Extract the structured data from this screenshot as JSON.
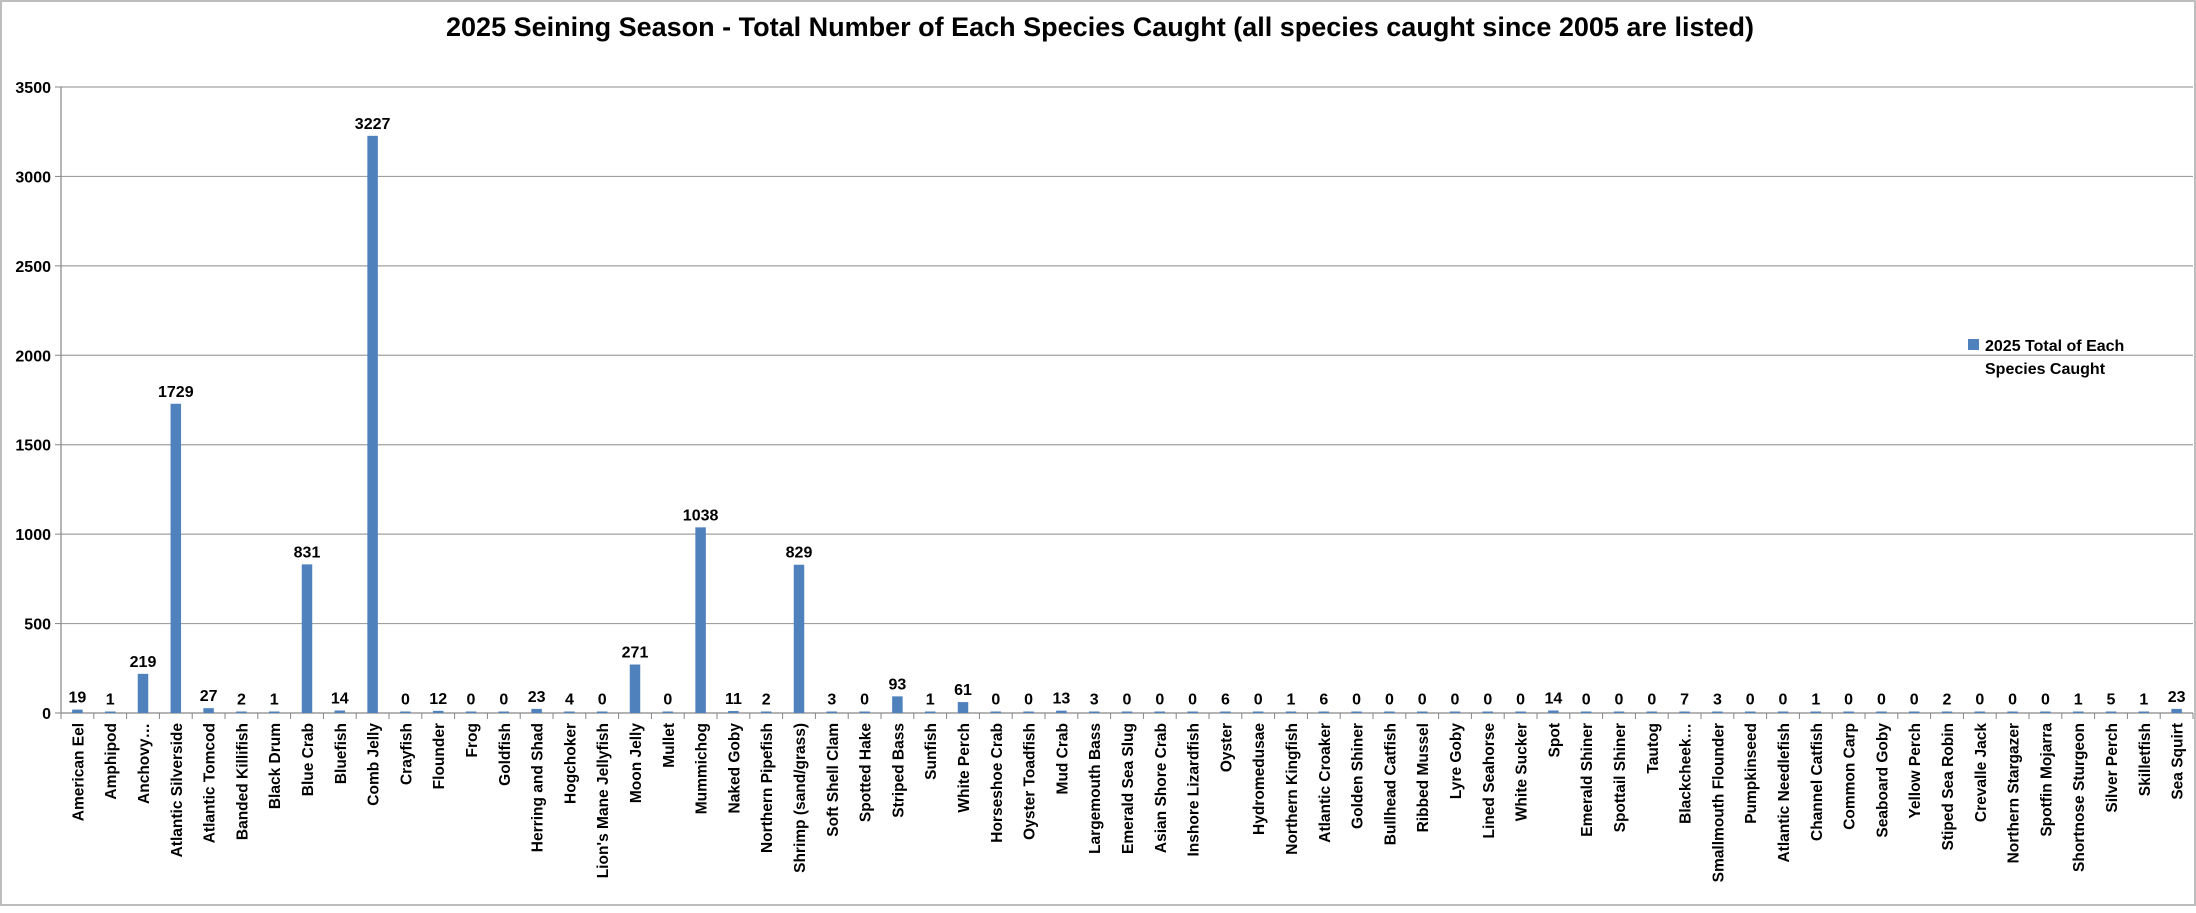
{
  "chart_data": {
    "type": "bar",
    "title": "2025 Seining Season - Total Number of Each Species Caught (all species caught since 2005 are listed)",
    "xlabel": "",
    "ylabel": "",
    "ylim": [
      0,
      3500
    ],
    "yticks": [
      0,
      500,
      1000,
      1500,
      2000,
      2500,
      3000,
      3500
    ],
    "grid": true,
    "legend_position": "right",
    "bar_color": "#4f81bd",
    "categories": [
      "American Eel",
      "Amphipod",
      "Anchovy…",
      "Atlantic Silverside",
      "Atlantic Tomcod",
      "Banded Killifish",
      "Black Drum",
      "Blue Crab",
      "Bluefish",
      "Comb Jelly",
      "Crayfish",
      "Flounder",
      "Frog",
      "Goldfish",
      "Herring and Shad",
      "Hogchoker",
      "Lion's Mane Jellyfish",
      "Moon Jelly",
      "Mullet",
      "Mummichog",
      "Naked Goby",
      "Northern Pipefish",
      "Shrimp (sand/grass)",
      "Soft Shell Clam",
      "Spotted Hake",
      "Striped Bass",
      "Sunfish",
      "White Perch",
      "Horseshoe Crab",
      "Oyster Toadfish",
      "Mud Crab",
      "Largemouth Bass",
      "Emerald Sea Slug",
      "Asian Shore Crab",
      "Inshore Lizardfish",
      "Oyster",
      "Hydromedusae",
      "Northern Kingfish",
      "Atlantic Croaker",
      "Golden Shiner",
      "Bullhead Catfish",
      "Ribbed Mussel",
      "Lyre Goby",
      "Lined Seahorse",
      "White Sucker",
      "Spot",
      "Emerald Shiner",
      "Spottail Shiner",
      "Tautog",
      "Blackcheek…",
      "Smallmouth Flounder",
      "Pumpkinseed",
      "Atlantic Needlefish",
      "Channel Catfish",
      "Common Carp",
      "Seaboard Goby",
      "Yellow Perch",
      "Stiped Sea Robin",
      "Crevalle Jack",
      "Northern Stargazer",
      "Spotfin Mojarra",
      "Shortnose Sturgeon",
      "Silver Perch",
      "Skilletfish",
      "Sea Squirt"
    ],
    "series": [
      {
        "name": "2025 Total of Each Species Caught",
        "values": [
          19,
          1,
          219,
          1729,
          27,
          2,
          1,
          831,
          14,
          3227,
          0,
          12,
          0,
          0,
          23,
          4,
          0,
          271,
          0,
          1038,
          11,
          2,
          829,
          3,
          0,
          93,
          1,
          61,
          0,
          0,
          13,
          3,
          0,
          0,
          0,
          6,
          0,
          1,
          6,
          0,
          0,
          0,
          0,
          0,
          0,
          14,
          0,
          0,
          0,
          7,
          3,
          0,
          0,
          1,
          0,
          0,
          0,
          2,
          0,
          0,
          0,
          1,
          5,
          1,
          23
        ]
      }
    ],
    "legend_lines": [
      "2025 Total of Each",
      "Species Caught"
    ]
  }
}
